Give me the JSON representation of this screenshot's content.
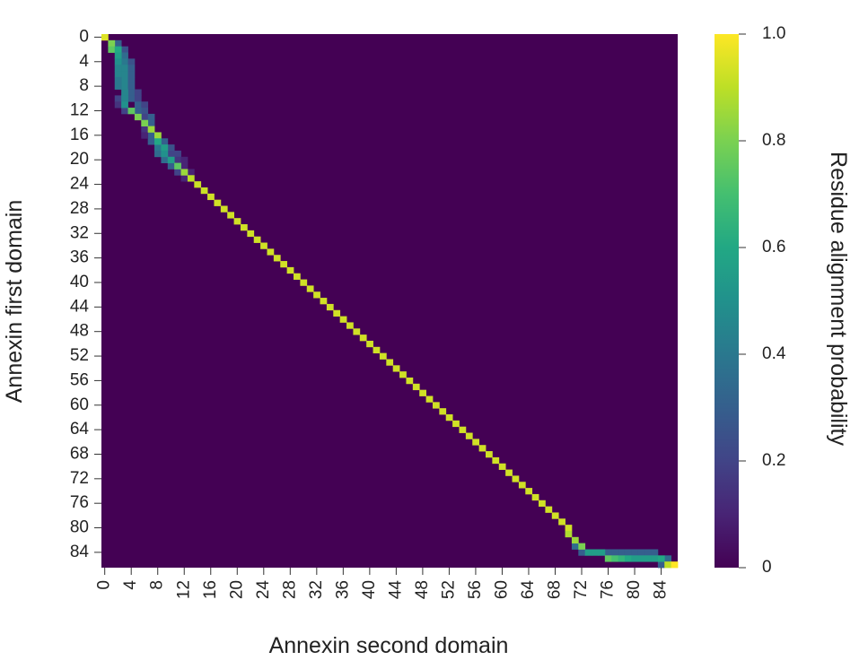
{
  "chart_data": {
    "type": "heatmap",
    "title": "",
    "xlabel": "Annexin second domain",
    "ylabel": "Annexin first domain",
    "colorbar_label": "Residue alignment probability",
    "colormap": "viridis",
    "value_range": [
      0,
      1
    ],
    "n_rows": 87,
    "n_cols": 87,
    "background_value": 0,
    "x_tick_labels": [
      "0",
      "4",
      "8",
      "12",
      "16",
      "20",
      "24",
      "28",
      "32",
      "36",
      "40",
      "44",
      "48",
      "52",
      "56",
      "60",
      "64",
      "68",
      "72",
      "76",
      "80",
      "84"
    ],
    "y_tick_labels": [
      "0",
      "4",
      "8",
      "12",
      "16",
      "20",
      "24",
      "28",
      "32",
      "36",
      "40",
      "44",
      "48",
      "52",
      "56",
      "60",
      "64",
      "68",
      "72",
      "76",
      "80",
      "84"
    ],
    "colorbar_tick_labels": [
      "0",
      "0.2",
      "0.4",
      "0.6",
      "0.8",
      "1.0"
    ],
    "colorbar_tick_values": [
      0,
      0.2,
      0.4,
      0.6,
      0.8,
      1.0
    ],
    "main_path": [
      [
        0,
        0,
        0.95
      ],
      [
        1,
        1,
        0.8
      ],
      [
        2,
        1,
        0.75
      ],
      [
        2,
        2,
        0.6
      ],
      [
        3,
        2,
        0.55
      ],
      [
        4,
        2,
        0.5
      ],
      [
        5,
        2,
        0.45
      ],
      [
        6,
        2,
        0.45
      ],
      [
        7,
        2,
        0.4
      ],
      [
        8,
        2,
        0.4
      ],
      [
        9,
        3,
        0.45
      ],
      [
        10,
        3,
        0.45
      ],
      [
        11,
        3,
        0.5
      ],
      [
        12,
        4,
        0.75
      ],
      [
        13,
        5,
        0.8
      ],
      [
        14,
        6,
        0.8
      ],
      [
        15,
        7,
        0.85
      ],
      [
        16,
        8,
        0.85
      ],
      [
        17,
        8,
        0.6
      ],
      [
        18,
        9,
        0.55
      ],
      [
        19,
        9,
        0.5
      ],
      [
        20,
        10,
        0.55
      ],
      [
        21,
        11,
        0.75
      ],
      [
        22,
        12,
        0.85
      ],
      [
        23,
        13,
        0.9
      ],
      [
        24,
        14,
        0.92
      ],
      [
        25,
        15,
        0.92
      ],
      [
        26,
        16,
        0.93
      ],
      [
        27,
        17,
        0.93
      ],
      [
        28,
        18,
        0.93
      ],
      [
        29,
        19,
        0.93
      ],
      [
        30,
        20,
        0.93
      ],
      [
        31,
        21,
        0.93
      ],
      [
        32,
        22,
        0.93
      ],
      [
        33,
        23,
        0.93
      ],
      [
        34,
        24,
        0.93
      ],
      [
        35,
        25,
        0.93
      ],
      [
        36,
        26,
        0.93
      ],
      [
        37,
        27,
        0.93
      ],
      [
        38,
        28,
        0.93
      ],
      [
        39,
        29,
        0.93
      ],
      [
        40,
        30,
        0.93
      ],
      [
        41,
        31,
        0.93
      ],
      [
        42,
        32,
        0.93
      ],
      [
        43,
        33,
        0.93
      ],
      [
        44,
        34,
        0.93
      ],
      [
        45,
        35,
        0.93
      ],
      [
        46,
        36,
        0.93
      ],
      [
        47,
        37,
        0.93
      ],
      [
        48,
        38,
        0.93
      ],
      [
        49,
        39,
        0.93
      ],
      [
        50,
        40,
        0.93
      ],
      [
        51,
        41,
        0.93
      ],
      [
        52,
        42,
        0.93
      ],
      [
        53,
        43,
        0.93
      ],
      [
        54,
        44,
        0.93
      ],
      [
        55,
        45,
        0.93
      ],
      [
        56,
        46,
        0.93
      ],
      [
        57,
        47,
        0.93
      ],
      [
        58,
        48,
        0.93
      ],
      [
        59,
        49,
        0.93
      ],
      [
        60,
        50,
        0.93
      ],
      [
        61,
        51,
        0.93
      ],
      [
        62,
        52,
        0.93
      ],
      [
        63,
        53,
        0.93
      ],
      [
        64,
        54,
        0.93
      ],
      [
        65,
        55,
        0.93
      ],
      [
        66,
        56,
        0.93
      ],
      [
        67,
        57,
        0.93
      ],
      [
        68,
        58,
        0.93
      ],
      [
        69,
        59,
        0.93
      ],
      [
        70,
        60,
        0.93
      ],
      [
        71,
        61,
        0.93
      ],
      [
        72,
        62,
        0.93
      ],
      [
        73,
        63,
        0.93
      ],
      [
        74,
        64,
        0.93
      ],
      [
        75,
        65,
        0.93
      ],
      [
        76,
        66,
        0.93
      ],
      [
        77,
        67,
        0.93
      ],
      [
        78,
        68,
        0.93
      ],
      [
        79,
        69,
        0.93
      ],
      [
        80,
        70,
        0.93
      ],
      [
        81,
        70,
        0.88
      ],
      [
        82,
        71,
        0.85
      ],
      [
        83,
        72,
        0.8
      ],
      [
        84,
        73,
        0.55
      ],
      [
        84,
        74,
        0.55
      ],
      [
        84,
        75,
        0.55
      ],
      [
        85,
        76,
        0.75
      ],
      [
        85,
        77,
        0.7
      ],
      [
        85,
        78,
        0.65
      ],
      [
        85,
        79,
        0.6
      ],
      [
        85,
        80,
        0.55
      ],
      [
        85,
        81,
        0.55
      ],
      [
        85,
        82,
        0.55
      ],
      [
        85,
        83,
        0.55
      ],
      [
        85,
        84,
        0.6
      ],
      [
        86,
        85,
        0.9
      ],
      [
        86,
        86,
        1.0
      ]
    ],
    "secondary_cells": [
      [
        1,
        2,
        0.3
      ],
      [
        2,
        3,
        0.25
      ],
      [
        3,
        3,
        0.35
      ],
      [
        4,
        3,
        0.4
      ],
      [
        5,
        3,
        0.45
      ],
      [
        6,
        3,
        0.45
      ],
      [
        7,
        3,
        0.45
      ],
      [
        8,
        3,
        0.45
      ],
      [
        4,
        4,
        0.25
      ],
      [
        5,
        4,
        0.3
      ],
      [
        6,
        4,
        0.3
      ],
      [
        7,
        4,
        0.3
      ],
      [
        8,
        4,
        0.3
      ],
      [
        9,
        4,
        0.3
      ],
      [
        10,
        4,
        0.3
      ],
      [
        9,
        5,
        0.2
      ],
      [
        10,
        5,
        0.2
      ],
      [
        11,
        5,
        0.3
      ],
      [
        11,
        6,
        0.2
      ],
      [
        12,
        6,
        0.25
      ],
      [
        13,
        6,
        0.2
      ],
      [
        12,
        5,
        0.3
      ],
      [
        13,
        7,
        0.3
      ],
      [
        14,
        7,
        0.3
      ],
      [
        16,
        7,
        0.3
      ],
      [
        17,
        7,
        0.3
      ],
      [
        18,
        8,
        0.4
      ],
      [
        19,
        8,
        0.35
      ],
      [
        20,
        9,
        0.35
      ],
      [
        21,
        10,
        0.3
      ],
      [
        17,
        9,
        0.3
      ],
      [
        18,
        10,
        0.25
      ],
      [
        19,
        10,
        0.2
      ],
      [
        19,
        11,
        0.2
      ],
      [
        20,
        11,
        0.15
      ],
      [
        20,
        12,
        0.1
      ],
      [
        21,
        12,
        0.1
      ],
      [
        22,
        13,
        0.1
      ],
      [
        22,
        11,
        0.2
      ],
      [
        23,
        12,
        0.1
      ],
      [
        15,
        6,
        0.15
      ],
      [
        16,
        6,
        0.1
      ],
      [
        10,
        2,
        0.2
      ],
      [
        11,
        2,
        0.15
      ],
      [
        12,
        3,
        0.2
      ],
      [
        83,
        71,
        0.35
      ],
      [
        84,
        72,
        0.3
      ],
      [
        84,
        76,
        0.3
      ],
      [
        84,
        77,
        0.3
      ],
      [
        84,
        78,
        0.3
      ],
      [
        84,
        79,
        0.3
      ],
      [
        84,
        80,
        0.3
      ],
      [
        84,
        81,
        0.3
      ],
      [
        84,
        82,
        0.3
      ],
      [
        84,
        83,
        0.3
      ],
      [
        85,
        85,
        0.35
      ],
      [
        86,
        84,
        0.3
      ]
    ]
  }
}
